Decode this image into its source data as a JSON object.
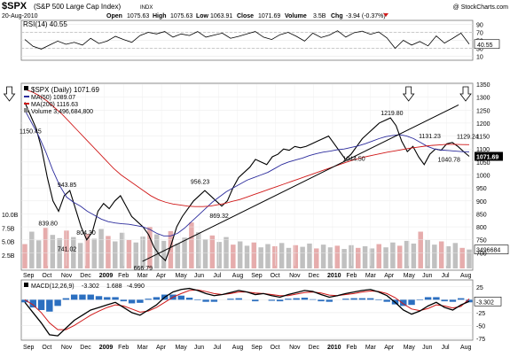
{
  "header": {
    "symbol": "$SPX",
    "name": "(S&P 500 Large Cap Index)",
    "exchange": "INDX",
    "watermark": "@ StockCharts.com",
    "date": "20-Aug-2010",
    "open_label": "Open",
    "open": "1075.63",
    "high_label": "High",
    "high": "1075.63",
    "low_label": "Low",
    "low": "1063.91",
    "close_label": "Close",
    "close": "1071.69",
    "volume_label": "Volume",
    "volume": "3.5B",
    "chg_label": "Chg",
    "chg": "-3.94 (-0.37%)"
  },
  "chart_data": [
    {
      "type": "line",
      "panel": "rsi",
      "title": "RSI(14) 40.55",
      "ylim": [
        0,
        100
      ],
      "yticks": [
        10,
        30,
        50,
        70,
        90
      ],
      "ytick_labels": [
        "10",
        "30",
        "50",
        "70",
        "90"
      ],
      "reference_lines": [
        30,
        70
      ],
      "current_value_label": "40.55",
      "series": [
        {
          "color": "#000000",
          "values": [
            52,
            35,
            28,
            38,
            48,
            40,
            45,
            38,
            55,
            42,
            48,
            60,
            52,
            45,
            62,
            70,
            66,
            72,
            58,
            66,
            62,
            72,
            58,
            63,
            68,
            55,
            60,
            66,
            72,
            58,
            52,
            64,
            70,
            60,
            48,
            68,
            57,
            63,
            74,
            58,
            69,
            73,
            65,
            71,
            56,
            30,
            50,
            38,
            47,
            36,
            61,
            43,
            55,
            68,
            40.55
          ]
        }
      ]
    },
    {
      "type": "line",
      "panel": "price",
      "title": "$SPX (Daily) 1071.69",
      "legend": [
        {
          "label": "$SPX (Daily) 1071.69",
          "color": "#000000"
        },
        {
          "label": "MA(50) 1089.07",
          "color": "#2b2b9c"
        },
        {
          "label": "MA(200) 1116.63",
          "color": "#d01818"
        },
        {
          "label": "Volume 3,496,684,800",
          "color": "#888888"
        }
      ],
      "x_tick_labels": [
        "Sep",
        "Oct",
        "Nov",
        "Dec",
        "2009",
        "Feb",
        "Mar",
        "Apr",
        "May",
        "Jun",
        "Jul",
        "Aug",
        "Sep",
        "Oct",
        "Nov",
        "Dec",
        "2010",
        "Feb",
        "Mar",
        "Apr",
        "May",
        "Jun",
        "Jul",
        "Aug"
      ],
      "ylim": [
        650,
        1350
      ],
      "yticks": [
        700,
        750,
        800,
        850,
        900,
        950,
        1000,
        1050,
        1100,
        1150,
        1200,
        1250,
        1300,
        1350
      ],
      "ytick_labels": [
        "700",
        "750",
        "800",
        "850",
        "900",
        "950",
        "1000",
        "1050",
        "1100",
        "1150",
        "1200",
        "1250",
        "1300",
        "1350"
      ],
      "price_label": "1071.69",
      "ma_price_labels": [
        "1116.63",
        "1089.07"
      ],
      "annotations": [
        {
          "label": "839.80",
          "x": "Oct",
          "y": 839.8
        },
        {
          "label": "943.85",
          "x": "Nov",
          "y": 943.85
        },
        {
          "label": "741.02",
          "x": "Nov",
          "y": 741.02
        },
        {
          "label": "804.30",
          "x": "Dec",
          "y": 804.3
        },
        {
          "label": "666.79",
          "x": "Mar",
          "y": 666.79
        },
        {
          "label": "956.23",
          "x": "Jun",
          "y": 956.23
        },
        {
          "label": "869.32",
          "x": "Jul",
          "y": 869.32
        },
        {
          "label": "1150.45",
          "x": "Jan",
          "y": 1150.45
        },
        {
          "label": "1044.50",
          "x": "Feb",
          "y": 1044.5
        },
        {
          "label": "1219.80",
          "x": "Apr",
          "y": 1219.8
        },
        {
          "label": "1131.23",
          "x": "Jun",
          "y": 1131.23
        },
        {
          "label": "1129.24",
          "x": "Aug",
          "y": 1129.24
        },
        {
          "label": "1040.78",
          "x": "Jul",
          "y": 1040.78
        }
      ],
      "series": [
        {
          "name": "$SPX (Daily)",
          "color": "#000000",
          "values": [
            1280,
            1230,
            1180,
            1100,
            990,
            900,
            860,
            920,
            940,
            870,
            800,
            750,
            780,
            860,
            890,
            870,
            900,
            920,
            880,
            840,
            820,
            800,
            770,
            720,
            690,
            670,
            730,
            800,
            840,
            870,
            900,
            920,
            940,
            920,
            900,
            880,
            900,
            950,
            990,
            1010,
            1030,
            1060,
            1050,
            1040,
            1070,
            1080,
            1100,
            1095,
            1110,
            1105,
            1110,
            1120,
            1130,
            1140,
            1150,
            1120,
            1090,
            1060,
            1080,
            1110,
            1140,
            1160,
            1180,
            1200,
            1210,
            1220,
            1190,
            1130,
            1090,
            1110,
            1070,
            1040,
            1080,
            1100,
            1095,
            1120,
            1125,
            1110,
            1090,
            1071.69
          ]
        },
        {
          "name": "MA(50)",
          "color": "#2b2b9c",
          "values": [
            1250,
            1200,
            1150,
            1090,
            1020,
            960,
            915,
            895,
            880,
            860,
            845,
            830,
            820,
            815,
            812,
            810,
            805,
            800,
            790,
            775,
            765,
            765,
            775,
            795,
            820,
            845,
            870,
            895,
            915,
            935,
            950,
            965,
            980,
            990,
            1000,
            1010,
            1025,
            1040,
            1050,
            1058,
            1065,
            1075,
            1082,
            1088,
            1092,
            1097,
            1100,
            1106,
            1112,
            1120,
            1130,
            1140,
            1148,
            1152,
            1155,
            1150,
            1140,
            1125,
            1110,
            1100,
            1096,
            1094,
            1092,
            1090,
            1089.07
          ]
        },
        {
          "name": "MA(200)",
          "color": "#d01818",
          "values": [
            1330,
            1320,
            1305,
            1285,
            1260,
            1235,
            1205,
            1175,
            1145,
            1115,
            1085,
            1055,
            1025,
            1000,
            980,
            960,
            940,
            920,
            905,
            895,
            888,
            884,
            880,
            878,
            878,
            880,
            885,
            890,
            898,
            905,
            915,
            925,
            935,
            945,
            955,
            965,
            975,
            985,
            995,
            1005,
            1015,
            1025,
            1035,
            1045,
            1055,
            1063,
            1070,
            1076,
            1082,
            1088,
            1093,
            1098,
            1103,
            1107,
            1111,
            1114,
            1116,
            1118,
            1118,
            1117,
            1116.63
          ]
        }
      ],
      "trendline": {
        "start": {
          "x": "Mar",
          "y": 666.79
        },
        "end": {
          "x": "Aug",
          "y": 1270
        }
      },
      "markers": [
        {
          "type": "down-arrow",
          "x": "Jan"
        },
        {
          "type": "down-arrow",
          "x": "May"
        },
        {
          "type": "down-arrow",
          "x": "Aug"
        }
      ]
    },
    {
      "type": "bar",
      "panel": "volume",
      "yticks": [
        2.5,
        5.0,
        7.5,
        10.0
      ],
      "ytick_labels": [
        "2.5B",
        "5.0B",
        "7.5B",
        "10.0B"
      ],
      "ylim": [
        0,
        10
      ],
      "current_value_label": "3496684",
      "series": [
        {
          "name": "Volume",
          "values": [
            4.5,
            6.8,
            5.2,
            7.5,
            6.2,
            5.6,
            7.0,
            5.8,
            4.7,
            6.4,
            5.5,
            7.3,
            6.0,
            5.0,
            6.6,
            5.3,
            4.8,
            5.9,
            7.7,
            6.3,
            5.1,
            6.9,
            4.6,
            5.7,
            8.5,
            6.7,
            5.4,
            6.1,
            4.9,
            5.8,
            4.4,
            5.0,
            4.2,
            4.8,
            3.9,
            4.5,
            4.1,
            4.7,
            3.8,
            4.3,
            4.0,
            4.6,
            3.7,
            4.4,
            3.9,
            4.2,
            3.6,
            4.3,
            3.8,
            4.1,
            3.7,
            4.5,
            3.9,
            4.8,
            4.2,
            5.1,
            4.6,
            6.8,
            5.3,
            4.4,
            5.0,
            4.1,
            4.7,
            3.8,
            3.5
          ]
        }
      ]
    },
    {
      "type": "line",
      "panel": "macd",
      "title": "MACD(12,26,9) -3.302, 1.688, -4.990",
      "legend": [
        {
          "label": "MACD(12,26,9)",
          "color": "#000000"
        },
        {
          "label": "-3.302",
          "color": "#000000"
        },
        {
          "label": "1.688",
          "color": "#d01818"
        },
        {
          "label": "-4.990",
          "color": "#2b6fc0"
        }
      ],
      "ylim": [
        -75,
        35
      ],
      "yticks": [
        25,
        0,
        -25,
        -50,
        -75
      ],
      "ytick_labels": [
        "25",
        "0",
        "-25",
        "-50",
        "-75"
      ],
      "current_value_label": "-3.302",
      "x_tick_labels": [
        "Sep",
        "Oct",
        "Nov",
        "Dec",
        "2009",
        "Feb",
        "Mar",
        "Apr",
        "May",
        "Jun",
        "Jul",
        "Aug",
        "Sep",
        "Oct",
        "Nov",
        "Dec",
        "2010",
        "Feb",
        "Mar",
        "Apr",
        "May",
        "Jun",
        "Jul",
        "Aug"
      ],
      "series": [
        {
          "name": "MACD",
          "color": "#000000",
          "values": [
            -5,
            -25,
            -45,
            -68,
            -70,
            -55,
            -40,
            -30,
            -20,
            -15,
            -10,
            -5,
            -15,
            -25,
            -30,
            -20,
            -10,
            5,
            15,
            20,
            22,
            18,
            12,
            8,
            10,
            14,
            18,
            15,
            10,
            12,
            8,
            5,
            10,
            14,
            18,
            16,
            10,
            5,
            8,
            12,
            15,
            18,
            20,
            15,
            8,
            -5,
            -20,
            -28,
            -22,
            -12,
            -5,
            -15,
            -20,
            -10,
            -3.302
          ]
        },
        {
          "name": "Signal",
          "color": "#d01818",
          "values": [
            0,
            -10,
            -25,
            -45,
            -58,
            -58,
            -50,
            -40,
            -30,
            -22,
            -15,
            -10,
            -12,
            -18,
            -24,
            -22,
            -15,
            -5,
            5,
            12,
            18,
            19,
            16,
            12,
            10,
            12,
            15,
            15,
            13,
            12,
            10,
            8,
            8,
            11,
            14,
            15,
            13,
            9,
            8,
            10,
            12,
            15,
            17,
            16,
            12,
            4,
            -8,
            -18,
            -21,
            -17,
            -10,
            -12,
            -16,
            -13,
            1.688
          ]
        },
        {
          "name": "Histogram",
          "color": "#2b6fc0",
          "type": "bar",
          "values": [
            -5,
            -15,
            -20,
            -23,
            -12,
            3,
            10,
            10,
            10,
            7,
            5,
            5,
            -3,
            -7,
            -6,
            2,
            5,
            10,
            10,
            8,
            4,
            -1,
            -4,
            -4,
            0,
            2,
            3,
            0,
            -3,
            0,
            -2,
            -3,
            2,
            3,
            4,
            1,
            -3,
            -4,
            0,
            2,
            3,
            3,
            3,
            -1,
            -4,
            -9,
            -12,
            -10,
            -1,
            5,
            5,
            -3,
            -4,
            3,
            -4.99
          ]
        }
      ]
    }
  ]
}
